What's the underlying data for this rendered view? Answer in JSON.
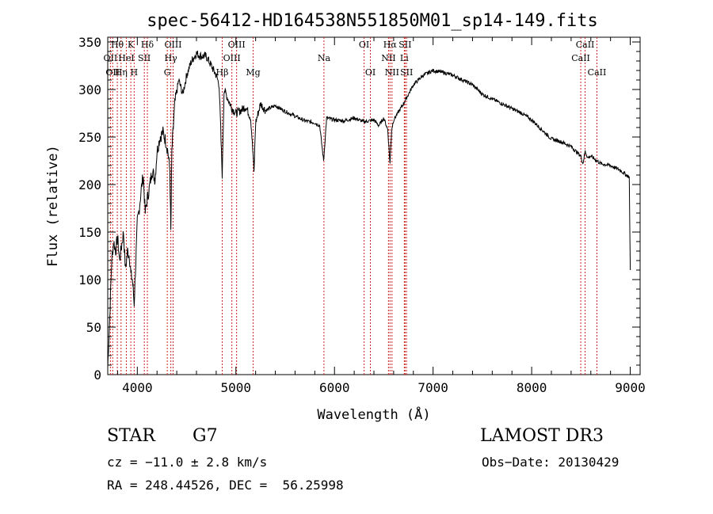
{
  "chart_data": {
    "type": "line",
    "title": "spec-56412-HD164538N551850M01_sp14-149.fits",
    "xlabel": "Wavelength (Å)",
    "ylabel": "Flux (relative)",
    "xlim": [
      3700,
      9100
    ],
    "ylim": [
      0,
      355
    ],
    "x_ticks": [
      4000,
      5000,
      6000,
      7000,
      8000,
      9000
    ],
    "y_ticks": [
      0,
      50,
      100,
      150,
      200,
      250,
      300,
      350
    ],
    "x_tick_labels": [
      "4000",
      "5000",
      "6000",
      "7000",
      "8000",
      "9000"
    ],
    "y_tick_labels": [
      "0",
      "50",
      "100",
      "150",
      "200",
      "250",
      "300",
      "350"
    ],
    "line_color": "#000000",
    "marker_color": "#cc2222",
    "series": [
      {
        "name": "spectrum",
        "x": [
          3700,
          3720,
          3740,
          3760,
          3780,
          3800,
          3820,
          3840,
          3860,
          3880,
          3900,
          3920,
          3935,
          3950,
          3968,
          3985,
          4000,
          4020,
          4040,
          4060,
          4080,
          4101,
          4120,
          4150,
          4180,
          4200,
          4230,
          4260,
          4290,
          4310,
          4330,
          4340,
          4350,
          4380,
          4420,
          4460,
          4500,
          4550,
          4600,
          4650,
          4700,
          4750,
          4800,
          4830,
          4861,
          4880,
          4920,
          4960,
          5000,
          5050,
          5100,
          5150,
          5175,
          5183,
          5200,
          5250,
          5300,
          5400,
          5500,
          5600,
          5700,
          5800,
          5850,
          5890,
          5920,
          6000,
          6100,
          6200,
          6300,
          6400,
          6450,
          6500,
          6540,
          6563,
          6580,
          6600,
          6700,
          6800,
          6900,
          7000,
          7100,
          7200,
          7300,
          7400,
          7500,
          7600,
          7700,
          7800,
          7900,
          8000,
          8100,
          8200,
          8300,
          8400,
          8498,
          8520,
          8542,
          8570,
          8600,
          8662,
          8700,
          8800,
          8900,
          8960,
          8990,
          9000
        ],
        "y": [
          8,
          60,
          120,
          140,
          130,
          145,
          120,
          135,
          150,
          110,
          130,
          125,
          105,
          100,
          75,
          120,
          160,
          175,
          195,
          210,
          170,
          185,
          195,
          215,
          205,
          235,
          250,
          255,
          245,
          235,
          215,
          150,
          235,
          285,
          310,
          295,
          315,
          330,
          338,
          335,
          335,
          325,
          315,
          305,
          210,
          300,
          290,
          280,
          275,
          278,
          282,
          270,
          230,
          212,
          265,
          285,
          278,
          283,
          277,
          272,
          267,
          265,
          262,
          225,
          270,
          268,
          267,
          270,
          266,
          268,
          262,
          270,
          258,
          222,
          258,
          268,
          285,
          305,
          315,
          320,
          318,
          315,
          310,
          305,
          295,
          290,
          285,
          280,
          275,
          268,
          258,
          248,
          245,
          240,
          230,
          222,
          235,
          228,
          230,
          225,
          222,
          220,
          215,
          210,
          208,
          110
        ]
      }
    ],
    "line_markers": [
      {
        "wl": 3727,
        "label": "OII",
        "row": 1
      },
      {
        "wl": 3750,
        "label": "OII",
        "row": 2
      },
      {
        "wl": 3797,
        "label": "Hθ",
        "row": 0
      },
      {
        "wl": 3835,
        "label": "Hη",
        "row": 2
      },
      {
        "wl": 3889,
        "label": "HeI",
        "row": 1
      },
      {
        "wl": 3934,
        "label": "K",
        "row": 0
      },
      {
        "wl": 3968,
        "label": "H",
        "row": 2
      },
      {
        "wl": 4071,
        "label": "SII",
        "row": 1
      },
      {
        "wl": 4102,
        "label": "Hδ",
        "row": 0
      },
      {
        "wl": 4340,
        "label": "Hγ",
        "row": 1
      },
      {
        "wl": 4304,
        "label": "G",
        "row": 2
      },
      {
        "wl": 4363,
        "label": "OIII",
        "row": 0
      },
      {
        "wl": 4861,
        "label": "Hβ",
        "row": 2
      },
      {
        "wl": 4959,
        "label": "OIII",
        "row": 1
      },
      {
        "wl": 5007,
        "label": "OIII",
        "row": 0
      },
      {
        "wl": 5175,
        "label": "Mg",
        "row": 2
      },
      {
        "wl": 5893,
        "label": "Na",
        "row": 1
      },
      {
        "wl": 6300,
        "label": "OI",
        "row": 0
      },
      {
        "wl": 6364,
        "label": "OI",
        "row": 2
      },
      {
        "wl": 6548,
        "label": "NII",
        "row": 1
      },
      {
        "wl": 6563,
        "label": "Hα",
        "row": 0
      },
      {
        "wl": 6583,
        "label": "NII",
        "row": 2
      },
      {
        "wl": 6708,
        "label": "Li",
        "row": 1
      },
      {
        "wl": 6716,
        "label": "SII",
        "row": 0
      },
      {
        "wl": 6731,
        "label": "SII",
        "row": 2
      },
      {
        "wl": 8498,
        "label": "CaII",
        "row": 1
      },
      {
        "wl": 8542,
        "label": "CaII",
        "row": 0
      },
      {
        "wl": 8662,
        "label": "CaII",
        "row": 2
      }
    ]
  },
  "info": {
    "class": "STAR",
    "subclass": "G7",
    "survey": "LAMOST DR3",
    "cz": "cz = −11.0 ± 2.8 km/s",
    "obs_date": "Obs−Date: 20130429",
    "coords": "RA = 248.44526, DEC =  56.25998"
  }
}
